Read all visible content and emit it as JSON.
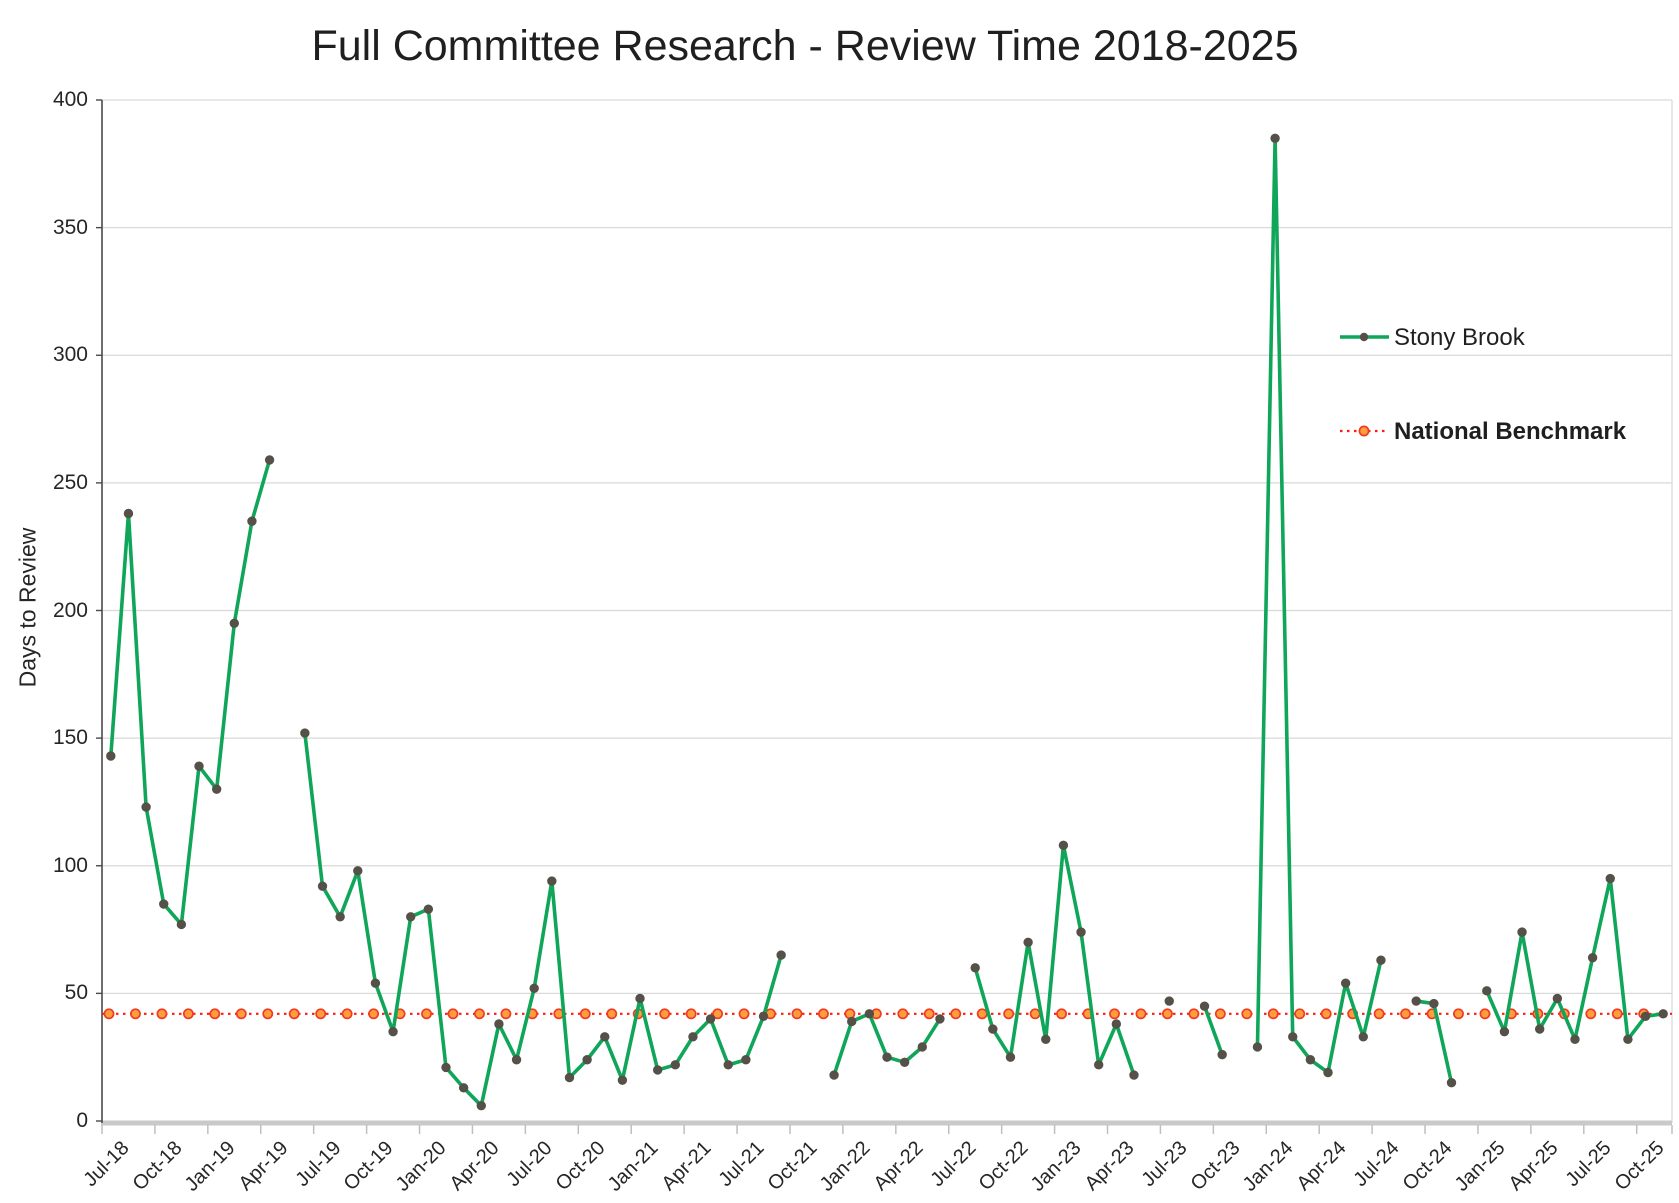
{
  "title": "Full Committee Research - Review Time 2018-2025",
  "y_axis": {
    "title": "Days to Review",
    "min": 0,
    "max": 400,
    "tick_step": 50,
    "ticks": [
      0,
      50,
      100,
      150,
      200,
      250,
      300,
      350,
      400
    ]
  },
  "x_axis": {
    "tick_every": 3,
    "tick_labels": [
      "Jul-18",
      "Oct-18",
      "Jan-19",
      "Apr-19",
      "Jul-19",
      "Oct-19",
      "Jan-20",
      "Apr-20",
      "Jul-20",
      "Oct-20",
      "Jan-21",
      "Apr-21",
      "Jul-21",
      "Oct-21",
      "Jan-22",
      "Apr-22",
      "Jul-22",
      "Oct-22",
      "Jan-23",
      "Apr-23",
      "Jul-23",
      "Oct-23",
      "Jan-24",
      "Apr-24",
      "Jul-24",
      "Oct-24",
      "Jan-25",
      "Apr-25",
      "Jul-25",
      "Oct-25"
    ]
  },
  "legend": {
    "series_label": "Stony Brook",
    "benchmark_label": "National Benchmark"
  },
  "colors": {
    "series": "#0FA65A",
    "series_marker": "#555048",
    "benchmark_line": "#FF1A0E",
    "benchmark_fill": "#FF9D3C",
    "benchmark_rim": "#EF3B24",
    "grid": "#D9D9D9",
    "axis_left": "#4A4A4A",
    "axis_bottom": "#C9C9C9",
    "tick": "#BFBFBF",
    "text": "#262626"
  },
  "chart_data": {
    "type": "line",
    "title": "Full Committee Research - Review Time 2018-2025",
    "xlabel": "",
    "ylabel": "Days to Review",
    "ylim": [
      0,
      400
    ],
    "grid": "horizontal",
    "legend_position": "right-upper",
    "benchmark": {
      "name": "National Benchmark",
      "value": 42
    },
    "categories": [
      "Jul-18",
      "Aug-18",
      "Sep-18",
      "Oct-18",
      "Nov-18",
      "Dec-18",
      "Jan-19",
      "Feb-19",
      "Mar-19",
      "Apr-19",
      "May-19",
      "Jun-19",
      "Jul-19",
      "Aug-19",
      "Sep-19",
      "Oct-19",
      "Nov-19",
      "Dec-19",
      "Jan-20",
      "Feb-20",
      "Mar-20",
      "Apr-20",
      "May-20",
      "Jun-20",
      "Jul-20",
      "Aug-20",
      "Sep-20",
      "Oct-20",
      "Nov-20",
      "Dec-20",
      "Jan-21",
      "Feb-21",
      "Mar-21",
      "Apr-21",
      "May-21",
      "Jun-21",
      "Jul-21",
      "Aug-21",
      "Sep-21",
      "Oct-21",
      "Nov-21",
      "Dec-21",
      "Jan-22",
      "Feb-22",
      "Mar-22",
      "Apr-22",
      "May-22",
      "Jun-22",
      "Jul-22",
      "Aug-22",
      "Sep-22",
      "Oct-22",
      "Nov-22",
      "Dec-22",
      "Jan-23",
      "Feb-23",
      "Mar-23",
      "Apr-23",
      "May-23",
      "Jun-23",
      "Jul-23",
      "Aug-23",
      "Sep-23",
      "Oct-23",
      "Nov-23",
      "Dec-23",
      "Jan-24",
      "Feb-24",
      "Mar-24",
      "Apr-24",
      "May-24",
      "Jun-24",
      "Jul-24",
      "Aug-24",
      "Sep-24",
      "Oct-24",
      "Nov-24",
      "Dec-24",
      "Jan-25",
      "Feb-25",
      "Mar-25",
      "Apr-25",
      "May-25",
      "Jun-25",
      "Jul-25",
      "Aug-25",
      "Sep-25",
      "Oct-25",
      "Nov-25"
    ],
    "series": [
      {
        "name": "Stony Brook",
        "values": [
          143,
          238,
          123,
          85,
          77,
          139,
          130,
          195,
          235,
          259,
          null,
          152,
          92,
          80,
          98,
          54,
          35,
          80,
          83,
          21,
          13,
          6,
          38,
          24,
          52,
          94,
          17,
          24,
          33,
          16,
          48,
          20,
          22,
          33,
          40,
          22,
          24,
          41,
          65,
          null,
          null,
          18,
          39,
          42,
          25,
          23,
          29,
          40,
          null,
          60,
          36,
          25,
          70,
          32,
          108,
          74,
          22,
          38,
          18,
          null,
          47,
          null,
          45,
          26,
          null,
          29,
          385,
          33,
          24,
          19,
          54,
          33,
          63,
          null,
          47,
          46,
          15,
          null,
          51,
          35,
          74,
          36,
          48,
          32,
          64,
          95,
          32,
          41,
          42
        ]
      },
      {
        "name": "National Benchmark",
        "constant_value": 42
      }
    ]
  }
}
